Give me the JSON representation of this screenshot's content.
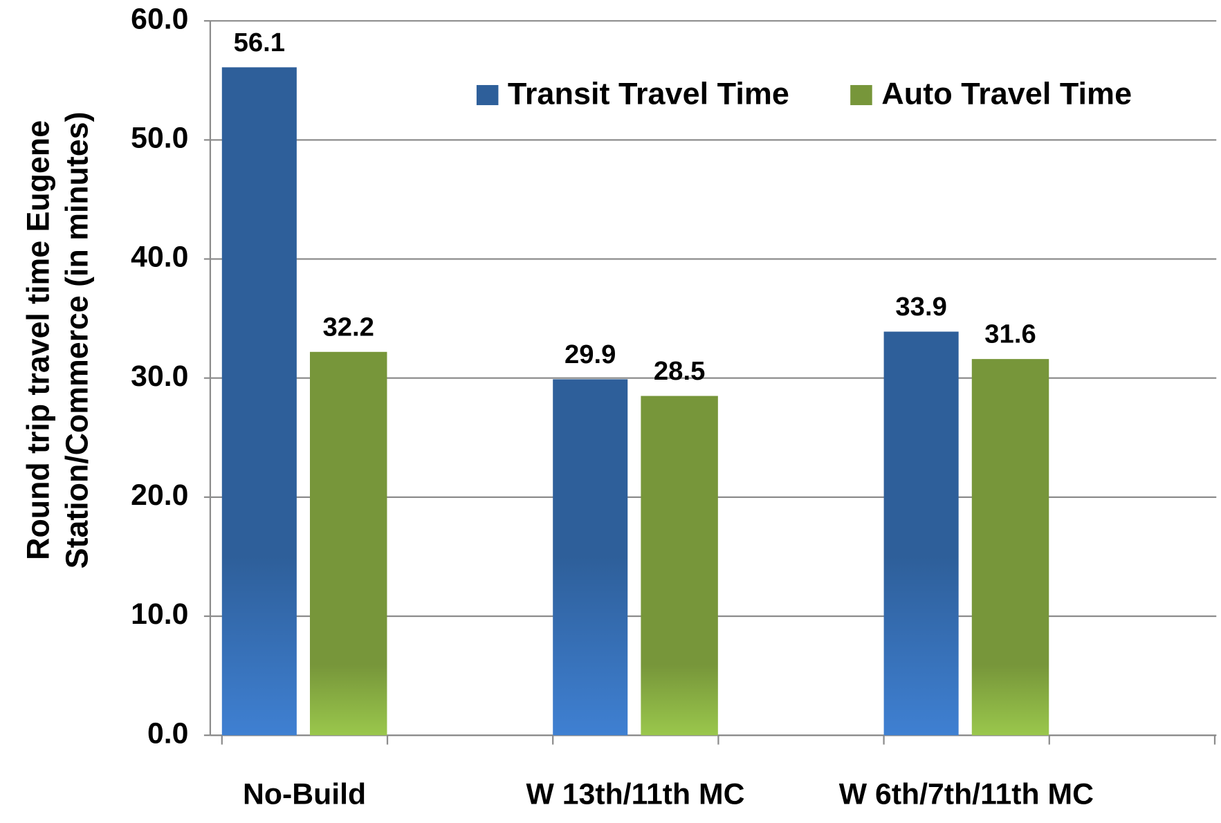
{
  "chart_data": {
    "type": "bar",
    "y_axis_label": [
      "Round trip travel  time Eugene",
      "Station/Commerce  (in minutes)"
    ],
    "categories": [
      "No-Build",
      "W 13th/11th MC",
      "W 6th/7th/11th MC"
    ],
    "series": [
      {
        "name": "Transit Travel Time",
        "color": "#2e5f9a",
        "values": [
          56.1,
          29.9,
          33.9
        ]
      },
      {
        "name": "Auto Travel Time",
        "color": "#77963a",
        "values": [
          32.2,
          28.5,
          31.6
        ]
      }
    ],
    "ylim": [
      0,
      60
    ],
    "yticks": [
      {
        "value": 0,
        "label": "0.0"
      },
      {
        "value": 10,
        "label": "10.0"
      },
      {
        "value": 20,
        "label": "20.0"
      },
      {
        "value": 30,
        "label": "30.0"
      },
      {
        "value": 40,
        "label": "40.0"
      },
      {
        "value": 50,
        "label": "50.0"
      },
      {
        "value": 60,
        "label": "60.0"
      }
    ],
    "grid": true,
    "legend": "top"
  }
}
